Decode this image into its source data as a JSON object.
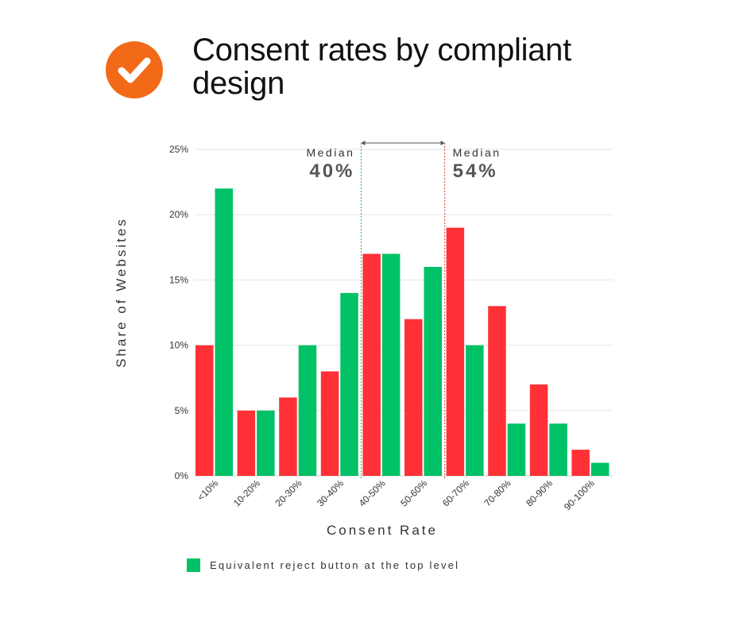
{
  "header": {
    "title": "Consent rates by compliant design",
    "icon": "check-circle-icon",
    "icon_color": "#F26A18"
  },
  "colors": {
    "red": "#FF3136",
    "green": "#00C165",
    "grid": "#E6E6E6",
    "median_green": "#2EAE5A",
    "median_red": "#D84040"
  },
  "chart_data": {
    "type": "bar",
    "categories": [
      "<10%",
      "10-20%",
      "20-30%",
      "30-40%",
      "40-50%",
      "50-60%",
      "60-70%",
      "70-80%",
      "80-90%",
      "90-100%"
    ],
    "series": [
      {
        "color": "red",
        "values": [
          10,
          5,
          6,
          8,
          17,
          12,
          19,
          13,
          7,
          2
        ]
      },
      {
        "name": "Equivalent reject button at the top level",
        "color": "green",
        "values": [
          22,
          5,
          10,
          14,
          17,
          16,
          10,
          4,
          4,
          1
        ]
      }
    ],
    "ylim": [
      0,
      25
    ],
    "yticks": [
      0,
      5,
      10,
      15,
      20,
      25
    ],
    "ytick_labels": [
      "0%",
      "5%",
      "10%",
      "15%",
      "20%",
      "25%"
    ],
    "xlabel": "Consent Rate",
    "ylabel": "Share of Websites",
    "grid": true,
    "legend_position": "bottom-left",
    "annotations": [
      {
        "label": "Median",
        "value": "40%",
        "x_category": "40-50%",
        "color": "green",
        "text_side": "left"
      },
      {
        "label": "Median",
        "value": "54%",
        "x_category": "50-60%",
        "color": "red",
        "text_side": "right"
      }
    ]
  },
  "legend": {
    "label": "Equivalent reject button at the top level",
    "color": "green"
  }
}
